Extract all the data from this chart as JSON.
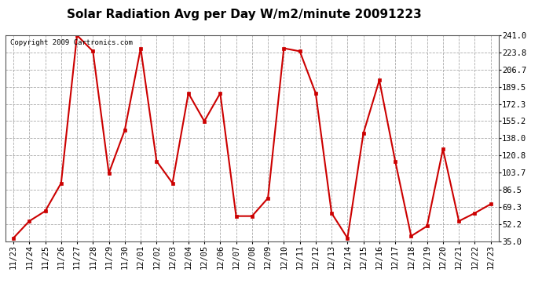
{
  "title": "Solar Radiation Avg per Day W/m2/minute 20091223",
  "copyright_text": "Copyright 2009 Cartronics.com",
  "dates": [
    "11/23",
    "11/24",
    "11/25",
    "11/26",
    "11/27",
    "11/28",
    "11/29",
    "11/30",
    "12/01",
    "12/02",
    "12/03",
    "12/04",
    "12/05",
    "12/06",
    "12/07",
    "12/08",
    "12/09",
    "12/10",
    "12/11",
    "12/12",
    "12/13",
    "12/14",
    "12/15",
    "12/16",
    "12/17",
    "12/18",
    "12/19",
    "12/20",
    "12/21",
    "12/22",
    "12/23"
  ],
  "values": [
    38,
    55,
    65,
    93,
    241,
    225,
    103,
    146,
    228,
    115,
    93,
    183,
    155,
    183,
    60,
    60,
    78,
    228,
    225,
    183,
    63,
    38,
    143,
    196,
    115,
    40,
    50,
    127,
    55,
    63,
    72
  ],
  "yticks": [
    35.0,
    52.2,
    69.3,
    86.5,
    103.7,
    120.8,
    138.0,
    155.2,
    172.3,
    189.5,
    206.7,
    223.8,
    241.0
  ],
  "ylim": [
    35.0,
    241.0
  ],
  "line_color": "#cc0000",
  "marker": "s",
  "marker_size": 3,
  "bg_color": "#ffffff",
  "plot_bg_color": "#ffffff",
  "grid_color": "#aaaaaa",
  "title_fontsize": 11,
  "tick_fontsize": 7.5,
  "copyright_fontsize": 6.5
}
